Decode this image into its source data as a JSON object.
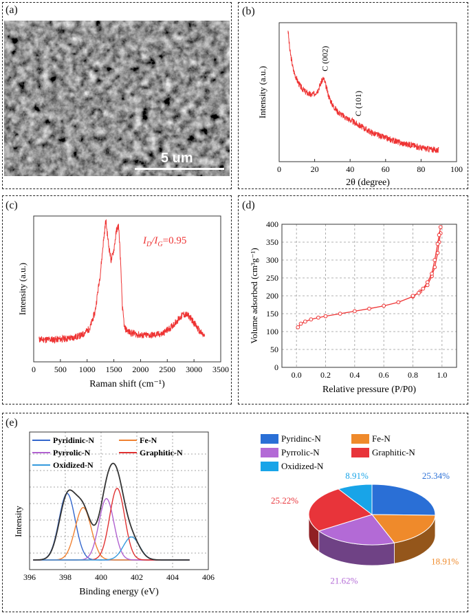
{
  "panels": {
    "a": {
      "label": "(a)",
      "scale_bar": "5 um"
    },
    "b": {
      "label": "(b)"
    },
    "c": {
      "label": "(c)"
    },
    "d": {
      "label": "(d)"
    },
    "e": {
      "label": "(e)"
    }
  },
  "chart_data": [
    {
      "panel": "b",
      "type": "line",
      "xlabel": "2θ (degree)",
      "ylabel": "Intensity (a.u.)",
      "xlim": [
        0,
        100
      ],
      "xticks": [
        0,
        20,
        40,
        60,
        80,
        100
      ],
      "color": "#ee3333",
      "annotations": [
        {
          "text": "C (002)",
          "x": 25
        },
        {
          "text": "C (101)",
          "x": 43
        }
      ],
      "x": [
        5,
        6,
        8,
        10,
        12,
        15,
        18,
        20,
        22,
        24,
        25,
        26,
        28,
        30,
        33,
        36,
        40,
        44,
        48,
        52,
        56,
        60,
        65,
        70,
        75,
        80,
        85,
        90
      ],
      "y": [
        0.95,
        0.8,
        0.66,
        0.59,
        0.54,
        0.5,
        0.48,
        0.49,
        0.52,
        0.58,
        0.6,
        0.56,
        0.47,
        0.41,
        0.36,
        0.33,
        0.3,
        0.27,
        0.24,
        0.21,
        0.19,
        0.17,
        0.15,
        0.13,
        0.12,
        0.1,
        0.09,
        0.08
      ]
    },
    {
      "panel": "c",
      "type": "line",
      "xlabel": "Raman shift (cm⁻¹)",
      "ylabel": "Intensity (a.u.)",
      "xlim": [
        0,
        3500
      ],
      "xticks": [
        0,
        500,
        1000,
        1500,
        2000,
        2500,
        3000,
        3500
      ],
      "color": "#ee3333",
      "annotation": {
        "prefix": "I",
        "d": "D",
        "slash": "/I",
        "g": "G",
        "value": "=0.95"
      },
      "x": [
        100,
        400,
        700,
        900,
        1050,
        1150,
        1250,
        1300,
        1350,
        1400,
        1450,
        1500,
        1550,
        1590,
        1620,
        1660,
        1700,
        1800,
        2000,
        2200,
        2400,
        2550,
        2700,
        2800,
        2900,
        3000,
        3100,
        3200
      ],
      "y": [
        0.12,
        0.12,
        0.13,
        0.15,
        0.2,
        0.32,
        0.6,
        0.8,
        0.97,
        0.8,
        0.68,
        0.76,
        0.9,
        0.93,
        0.72,
        0.35,
        0.2,
        0.17,
        0.15,
        0.15,
        0.16,
        0.2,
        0.26,
        0.3,
        0.29,
        0.24,
        0.18,
        0.14
      ]
    },
    {
      "panel": "d",
      "type": "line",
      "xlabel": "Relative pressure (P/P0)",
      "ylabel": "Volume adsorbed (cm³g⁻¹)",
      "xlim": [
        -0.1,
        1.1
      ],
      "ylim": [
        0,
        400
      ],
      "xticks": [
        0.0,
        0.2,
        0.4,
        0.6,
        0.8,
        1.0
      ],
      "yticks": [
        0,
        50,
        100,
        150,
        200,
        250,
        300,
        350,
        400
      ],
      "grid": true,
      "color": "#ee3333",
      "series": [
        {
          "x": [
            0.01,
            0.03,
            0.06,
            0.1,
            0.15,
            0.2,
            0.3,
            0.4,
            0.5,
            0.6,
            0.7,
            0.8,
            0.85,
            0.9,
            0.93,
            0.95,
            0.97,
            0.98,
            0.99
          ],
          "y": [
            112,
            122,
            128,
            134,
            139,
            143,
            150,
            157,
            164,
            172,
            182,
            198,
            212,
            230,
            255,
            280,
            320,
            350,
            375
          ]
        },
        {
          "x": [
            0.99,
            0.98,
            0.97,
            0.95,
            0.93,
            0.9,
            0.87,
            0.84,
            0.8
          ],
          "y": [
            392,
            370,
            345,
            300,
            262,
            238,
            220,
            208,
            200
          ]
        }
      ]
    },
    {
      "panel": "e-left",
      "type": "line",
      "xlabel": "Binding energy (eV)",
      "ylabel": "Intensity",
      "xlim": [
        396,
        406
      ],
      "xticks": [
        396,
        398,
        400,
        402,
        404,
        406
      ],
      "legend": [
        {
          "name": "Pyridinic-N",
          "color": "#3366cc"
        },
        {
          "name": "Fe-N",
          "color": "#f08030"
        },
        {
          "name": "Pyrrolic-N",
          "color": "#b060d0"
        },
        {
          "name": "Graphitic-N",
          "color": "#e03030"
        },
        {
          "name": "Oxidized-N",
          "color": "#3399dd"
        }
      ],
      "series": [
        {
          "name": "Pyridinic-N",
          "center": 398.1,
          "height": 0.52,
          "width": 0.45
        },
        {
          "name": "Fe-N",
          "center": 399.0,
          "height": 0.41,
          "width": 0.45
        },
        {
          "name": "Pyrrolic-N",
          "center": 400.3,
          "height": 0.48,
          "width": 0.42
        },
        {
          "name": "Graphitic-N",
          "center": 400.9,
          "height": 0.56,
          "width": 0.42
        },
        {
          "name": "Oxidized-N",
          "center": 401.7,
          "height": 0.18,
          "width": 0.45
        }
      ],
      "envelope_color": "#333333"
    },
    {
      "panel": "e-right",
      "type": "pie",
      "legend": [
        "Pyridinc-N",
        "Fe-N",
        "Pyrrolic-N",
        "Graphitic-N",
        "Oxidized-N"
      ],
      "slices": [
        {
          "name": "Pyridinc-N",
          "value": 25.34,
          "label": "25.34%",
          "color": "#2a6fd6"
        },
        {
          "name": "Fe-N",
          "value": 18.91,
          "label": "18.91%",
          "color": "#ef8a2b"
        },
        {
          "name": "Pyrrolic-N",
          "value": 21.62,
          "label": "21.62%",
          "color": "#b36ad6"
        },
        {
          "name": "Graphitic-N",
          "value": 25.22,
          "label": "25.22%",
          "color": "#e8343a"
        },
        {
          "name": "Oxidized-N",
          "value": 8.91,
          "label": "8.91%",
          "color": "#18a4e8"
        }
      ]
    }
  ]
}
